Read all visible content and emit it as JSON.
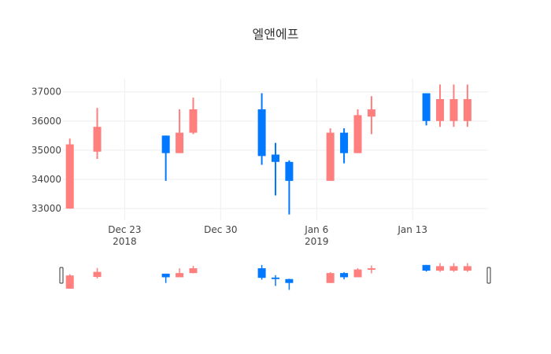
{
  "chart_data": {
    "type": "candlestick",
    "title": "엘앤에프",
    "colors": {
      "increasing": "#FF7F7F",
      "decreasing": "#0078FF"
    },
    "y_ticks": [
      "33000",
      "34000",
      "35000",
      "36000",
      "37000"
    ],
    "ylim": [
      32600,
      37450
    ],
    "x_ticks": [
      {
        "date": "2018-12-23",
        "label": "Dec 23",
        "year": "2018"
      },
      {
        "date": "2018-12-30",
        "label": "Dec 30",
        "year": ""
      },
      {
        "date": "2019-01-06",
        "label": "Jan 6",
        "year": "2019"
      },
      {
        "date": "2019-01-13",
        "label": "Jan 13",
        "year": ""
      }
    ],
    "xlim": [
      "2018-12-18T12:00",
      "2019-01-18T12:00"
    ],
    "grid": true,
    "legend": "none",
    "range_slider": true,
    "candles": [
      {
        "date": "2018-12-19",
        "open": 33000,
        "high": 35400,
        "low": 33000,
        "close": 35200
      },
      {
        "date": "2018-12-21",
        "open": 34950,
        "high": 36450,
        "low": 34700,
        "close": 35800
      },
      {
        "date": "2018-12-26",
        "open": 35500,
        "high": 35500,
        "low": 33950,
        "close": 34900
      },
      {
        "date": "2018-12-27",
        "open": 34900,
        "high": 36400,
        "low": 34900,
        "close": 35600
      },
      {
        "date": "2018-12-28",
        "open": 35600,
        "high": 36800,
        "low": 35550,
        "close": 36400
      },
      {
        "date": "2019-01-02",
        "open": 36400,
        "high": 36950,
        "low": 34500,
        "close": 34800
      },
      {
        "date": "2019-01-03",
        "open": 34850,
        "high": 35250,
        "low": 33450,
        "close": 34600
      },
      {
        "date": "2019-01-04",
        "open": 34600,
        "high": 34650,
        "low": 32800,
        "close": 33950
      },
      {
        "date": "2019-01-07",
        "open": 33950,
        "high": 35750,
        "low": 33950,
        "close": 35600
      },
      {
        "date": "2019-01-08",
        "open": 35600,
        "high": 35750,
        "low": 34550,
        "close": 34900
      },
      {
        "date": "2019-01-09",
        "open": 34900,
        "high": 36400,
        "low": 34900,
        "close": 36200
      },
      {
        "date": "2019-01-10",
        "open": 36150,
        "high": 36850,
        "low": 35550,
        "close": 36400
      },
      {
        "date": "2019-01-14",
        "open": 36950,
        "high": 36950,
        "low": 35850,
        "close": 36000
      },
      {
        "date": "2019-01-15",
        "open": 36000,
        "high": 37250,
        "low": 35800,
        "close": 36750
      },
      {
        "date": "2019-01-16",
        "open": 36000,
        "high": 37250,
        "low": 35800,
        "close": 36750
      },
      {
        "date": "2019-01-17",
        "open": 36000,
        "high": 37250,
        "low": 35800,
        "close": 36750
      }
    ]
  }
}
